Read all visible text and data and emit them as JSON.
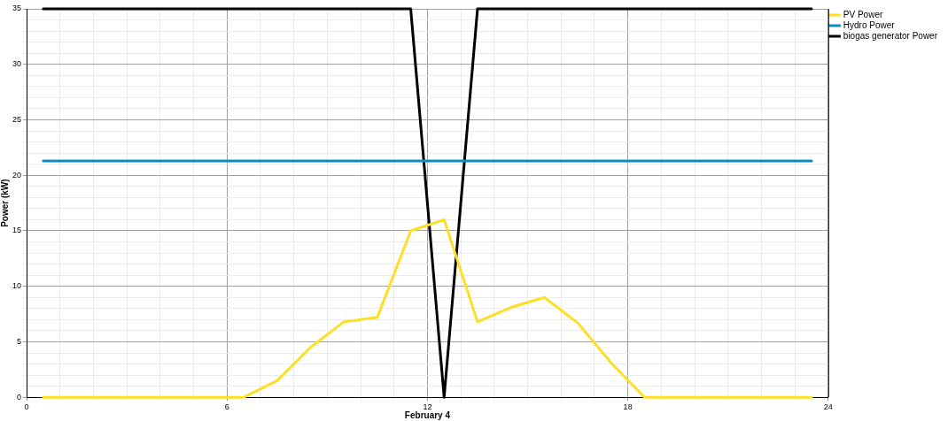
{
  "chart_data": {
    "type": "line",
    "xlabel": "February 4",
    "ylabel": "Power (kW)",
    "x": [
      0.5,
      1.5,
      2.5,
      3.5,
      4.5,
      5.5,
      6.5,
      7.5,
      8.5,
      9.5,
      10.5,
      11.5,
      12.5,
      13.5,
      14.5,
      15.5,
      16.5,
      17.5,
      18.5,
      19.5,
      20.5,
      21.5,
      22.5,
      23.5
    ],
    "series": [
      {
        "name": "PV Power",
        "color": "#ffde26",
        "values": [
          0,
          0,
          0,
          0,
          0,
          0,
          0,
          1.5,
          4.5,
          6.8,
          7.2,
          15,
          16,
          6.8,
          8.1,
          9,
          6.7,
          3.1,
          0,
          0,
          0,
          0,
          0,
          0
        ]
      },
      {
        "name": "Hydro Power",
        "color": "#0e8cc0",
        "values": [
          21.3,
          21.3,
          21.3,
          21.3,
          21.3,
          21.3,
          21.3,
          21.3,
          21.3,
          21.3,
          21.3,
          21.3,
          21.3,
          21.3,
          21.3,
          21.3,
          21.3,
          21.3,
          21.3,
          21.3,
          21.3,
          21.3,
          21.3,
          21.3
        ]
      },
      {
        "name": "biogas generator Power",
        "color": "#000000",
        "values": [
          35,
          35,
          35,
          35,
          35,
          35,
          35,
          35,
          35,
          35,
          35,
          35,
          0,
          35,
          35,
          35,
          35,
          35,
          35,
          35,
          35,
          35,
          35,
          35
        ]
      }
    ],
    "xlim": [
      0,
      24
    ],
    "xticks": [
      0,
      {
        "value": 1,
        "label": null
      },
      {
        "value": 2,
        "label": null
      },
      {
        "value": 3,
        "label": null
      },
      {
        "value": 4,
        "label": null
      },
      {
        "value": 5,
        "label": null
      },
      6,
      {
        "value": 7,
        "label": null
      },
      {
        "value": 8,
        "label": null
      },
      {
        "value": 9,
        "label": null
      },
      {
        "value": 10,
        "label": null
      },
      {
        "value": 11,
        "label": null
      },
      12,
      {
        "value": 13,
        "label": null
      },
      {
        "value": 14,
        "label": null
      },
      {
        "value": 15,
        "label": null
      },
      {
        "value": 16,
        "label": null
      },
      {
        "value": 17,
        "label": null
      },
      18,
      {
        "value": 19,
        "label": null
      },
      {
        "value": 20,
        "label": null
      },
      {
        "value": 21,
        "label": null
      },
      {
        "value": 22,
        "label": null
      },
      {
        "value": 23,
        "label": null
      },
      24
    ],
    "ylim": [
      0,
      35
    ],
    "yticks": [
      0,
      {
        "value": 1,
        "label": null
      },
      {
        "value": 2,
        "label": null
      },
      {
        "value": 3,
        "label": null
      },
      {
        "value": 4,
        "label": null
      },
      5,
      {
        "value": 6,
        "label": null
      },
      {
        "value": 7,
        "label": null
      },
      {
        "value": 8,
        "label": null
      },
      {
        "value": 9,
        "label": null
      },
      10,
      {
        "value": 11,
        "label": null
      },
      {
        "value": 12,
        "label": null
      },
      {
        "value": 13,
        "label": null
      },
      {
        "value": 14,
        "label": null
      },
      15,
      {
        "value": 16,
        "label": null
      },
      {
        "value": 17,
        "label": null
      },
      {
        "value": 18,
        "label": null
      },
      {
        "value": 19,
        "label": null
      },
      20,
      {
        "value": 21,
        "label": null
      },
      {
        "value": 22,
        "label": null
      },
      {
        "value": 23,
        "label": null
      },
      {
        "value": 24,
        "label": null
      },
      25,
      {
        "value": 26,
        "label": null
      },
      {
        "value": 27,
        "label": null
      },
      {
        "value": 28,
        "label": null
      },
      {
        "value": 29,
        "label": null
      },
      30,
      {
        "value": 31,
        "label": null
      },
      {
        "value": 32,
        "label": null
      },
      {
        "value": 33,
        "label": null
      },
      {
        "value": 34,
        "label": null
      },
      35
    ],
    "grid": true,
    "legend": "top right",
    "marker": "none",
    "line_style": "solid"
  }
}
